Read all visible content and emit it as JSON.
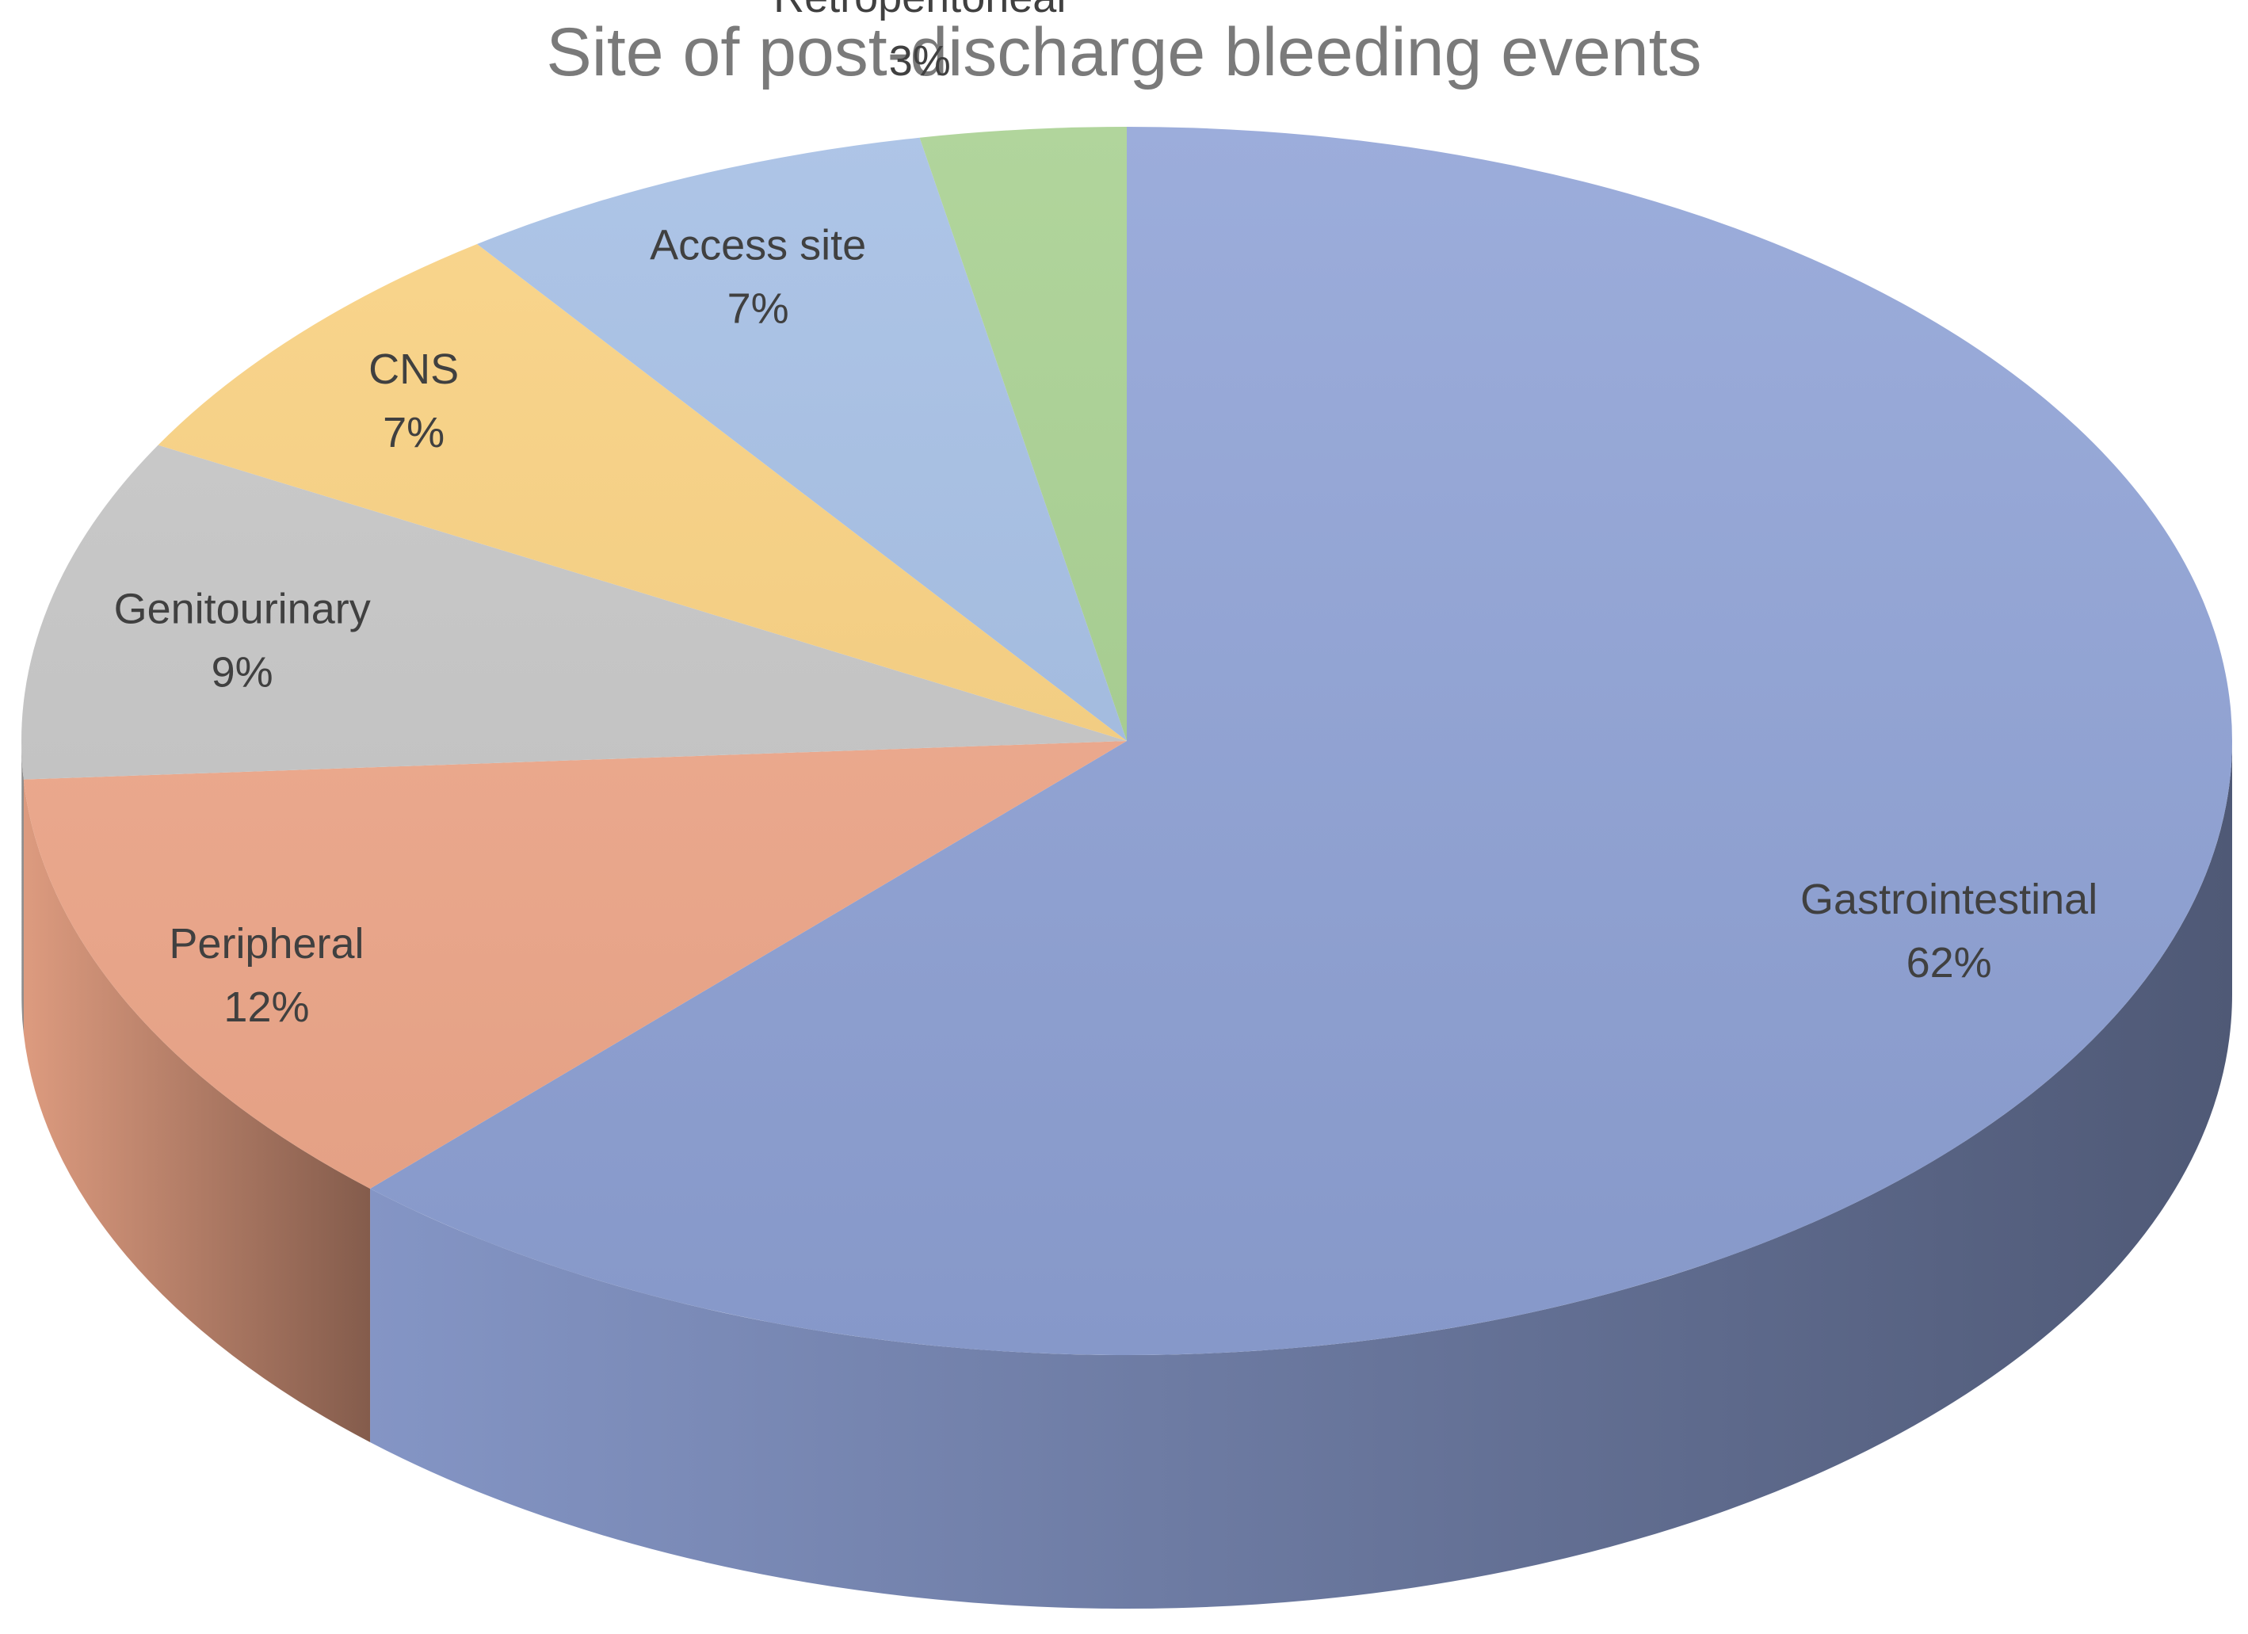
{
  "chart_data": {
    "type": "pie",
    "title": "Site of post-discharge bleeding events",
    "slices": [
      {
        "label": "Gastrointestinal",
        "value": 62,
        "value_label": "62%",
        "color": "#8fa2d6"
      },
      {
        "label": "Peripheral",
        "value": 12,
        "value_label": "12%",
        "color": "#f0a88a"
      },
      {
        "label": "Genitourinary",
        "value": 9,
        "value_label": "9%",
        "color": "#c6c6c6"
      },
      {
        "label": "CNS",
        "value": 7,
        "value_label": "7%",
        "color": "#f9d07f"
      },
      {
        "label": "Access site",
        "value": 7,
        "value_label": "7%",
        "color": "#a3bde4"
      },
      {
        "label": "Retroperitoneal",
        "value": 3,
        "value_label": "3%",
        "color": "#a6cf8f"
      }
    ],
    "style": "3d-tilted"
  }
}
